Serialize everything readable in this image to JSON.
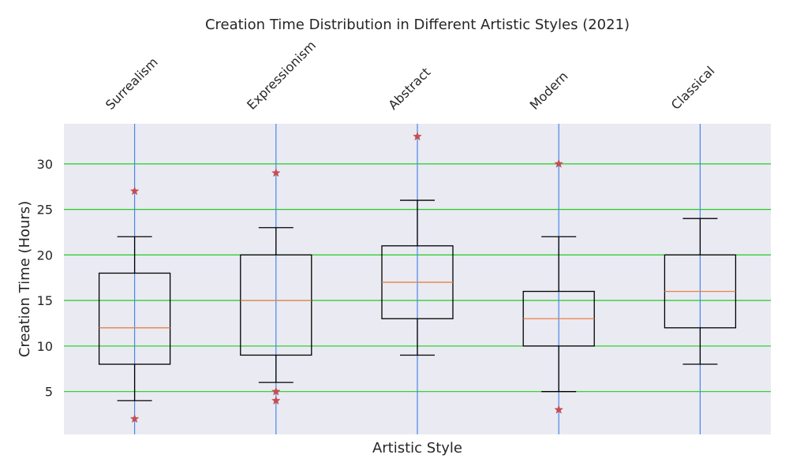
{
  "chart_data": {
    "type": "box",
    "title": "Creation Time Distribution in Different Artistic Styles (2021)",
    "xlabel": "Artistic Style",
    "ylabel": "Creation Time (Hours)",
    "ylim": [
      0.3,
      34.4
    ],
    "yticks": [
      5,
      10,
      15,
      20,
      25,
      30
    ],
    "grid": true,
    "categories": [
      "Surrealism",
      "Expressionism",
      "Abstract",
      "Modern",
      "Classical"
    ],
    "boxes": [
      {
        "category": "Surrealism",
        "whisker_low": 4,
        "q1": 8,
        "median": 12,
        "q3": 18,
        "whisker_high": 22,
        "outliers": [
          27,
          2
        ]
      },
      {
        "category": "Expressionism",
        "whisker_low": 6,
        "q1": 9,
        "median": 15,
        "q3": 20,
        "whisker_high": 23,
        "outliers": [
          29,
          5,
          4
        ]
      },
      {
        "category": "Abstract",
        "whisker_low": 9,
        "q1": 13,
        "median": 17,
        "q3": 21,
        "whisker_high": 26,
        "outliers": [
          33
        ]
      },
      {
        "category": "Modern",
        "whisker_low": 5,
        "q1": 10,
        "median": 13,
        "q3": 16,
        "whisker_high": 22,
        "outliers": [
          30,
          3
        ]
      },
      {
        "category": "Classical",
        "whisker_low": 8,
        "q1": 12,
        "median": 16,
        "q3": 20,
        "whisker_high": 24,
        "outliers": []
      }
    ],
    "colors": {
      "background": "#eaeaf2",
      "hgrid": "#22cc22",
      "vgrid": "#4a86e8",
      "box": "#000000",
      "median": "#e8804a",
      "outlier": "#c44e52"
    }
  }
}
